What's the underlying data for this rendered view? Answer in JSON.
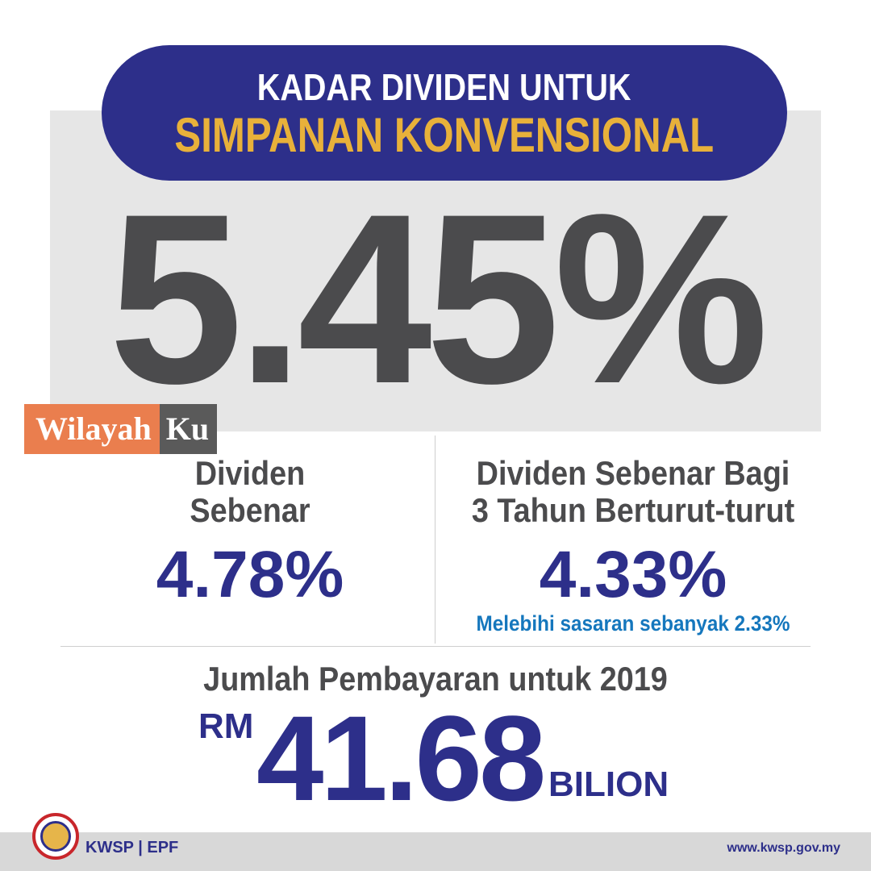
{
  "header": {
    "line1": "KADAR DIVIDEN UNTUK",
    "line2": "SIMPANAN KONVENSIONAL"
  },
  "headline_rate": "5.45%",
  "watermark": {
    "part1": "Wilayah",
    "part2": "Ku"
  },
  "left_column": {
    "title_line1": "Dividen",
    "title_line2": "Sebenar",
    "value": "4.78%"
  },
  "right_column": {
    "title_line1": "Dividen Sebenar Bagi",
    "title_line2": "3 Tahun Berturut-turut",
    "value": "4.33%",
    "note": "Melebihi sasaran sebanyak 2.33%"
  },
  "total": {
    "label": "Jumlah Pembayaran untuk 2019",
    "currency": "RM",
    "amount": "41.68",
    "unit": "BILION"
  },
  "footer": {
    "brand": "KWSP | EPF",
    "url": "www.kwsp.gov.my"
  },
  "colors": {
    "navy": "#2d2f8a",
    "gold": "#e8b13a",
    "gray_text": "#4b4b4d",
    "blue_note": "#1577bd",
    "brand_orange": "#ea7e4e"
  }
}
